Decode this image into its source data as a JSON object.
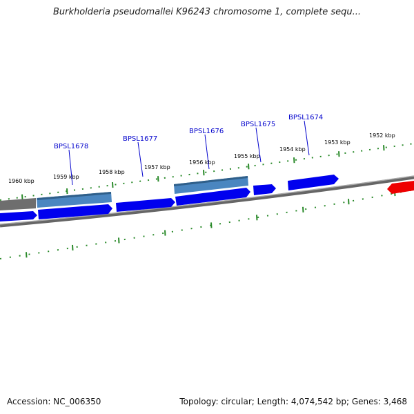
{
  "title": "Burkholderia pseudomallei K96243 chromosome 1, complete sequ...",
  "accession": "Accession: NC_006350",
  "summary": "Topology: circular; Length: 4,074,542 bp; Genes: 3,468",
  "colors": {
    "backbone": "#808080",
    "forward_gene": "#0000ee",
    "highlight_gene": "#4a86c0",
    "pseudo_gene": "#707070",
    "reverse_gene": "#ee0000",
    "ticks": "#2a8a2a",
    "gene_label": "#0000cc"
  },
  "scale": {
    "ticks": [
      {
        "label": "1960 kbp"
      },
      {
        "label": "1959 kbp"
      },
      {
        "label": "1958 kbp"
      },
      {
        "label": "1957 kbp"
      },
      {
        "label": "1956 kbp"
      },
      {
        "label": "1955 kbp"
      },
      {
        "label": "1954 kbp"
      },
      {
        "label": "1953 kbp"
      },
      {
        "label": "1952 kbp"
      }
    ]
  },
  "gene_labels": [
    {
      "label": "BPSL1678"
    },
    {
      "label": "BPSL1677"
    },
    {
      "label": "BPSL1676"
    },
    {
      "label": "BPSL1675"
    },
    {
      "label": "BPSL1674"
    }
  ]
}
